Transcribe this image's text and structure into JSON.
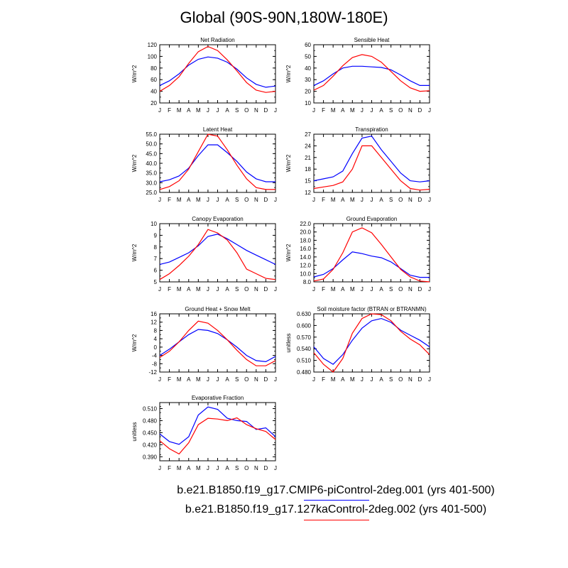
{
  "page": {
    "title": "Global (90S-90N,180W-180E)"
  },
  "colors": {
    "series1": "#0000ff",
    "series2": "#ff0000",
    "axis": "#000000"
  },
  "legend": [
    {
      "label": "b.e21.B1850.f19_g17.CMIP6-piControl-2deg.001 (yrs 401-500)",
      "color": "#0000ff"
    },
    {
      "label": "b.e21.B1850.f19_g17.127kaControl-2deg.002 (yrs 401-500)",
      "color": "#ff0000"
    }
  ],
  "chart_data": [
    {
      "type": "line",
      "title": "Net Radiation",
      "ylabel": "W/m^2",
      "x": [
        "J",
        "F",
        "M",
        "A",
        "M",
        "J",
        "J",
        "A",
        "S",
        "O",
        "N",
        "D",
        "J"
      ],
      "ylim": [
        20,
        120
      ],
      "yticks": [
        20,
        40,
        60,
        80,
        100,
        120
      ],
      "ytick_labels": [
        "20",
        "40",
        "60",
        "80",
        "100",
        "120"
      ],
      "series": [
        {
          "color": "#0000ff",
          "values": [
            50,
            58,
            70,
            85,
            95,
            99,
            97,
            90,
            78,
            63,
            52,
            47,
            49
          ]
        },
        {
          "color": "#ff0000",
          "values": [
            40,
            50,
            65,
            88,
            108,
            117,
            110,
            94,
            75,
            55,
            42,
            38,
            40
          ]
        }
      ]
    },
    {
      "type": "line",
      "title": "Sensible Heat",
      "ylabel": "W/m^2",
      "x": [
        "J",
        "F",
        "M",
        "A",
        "M",
        "J",
        "J",
        "A",
        "S",
        "O",
        "N",
        "D",
        "J"
      ],
      "ylim": [
        10,
        60
      ],
      "yticks": [
        10,
        20,
        30,
        40,
        50,
        60
      ],
      "ytick_labels": [
        "10",
        "20",
        "30",
        "40",
        "50",
        "60"
      ],
      "series": [
        {
          "color": "#0000ff",
          "values": [
            25,
            29,
            35,
            40,
            41.5,
            41.5,
            41,
            40.5,
            38.5,
            34,
            29,
            25,
            25
          ]
        },
        {
          "color": "#ff0000",
          "values": [
            21,
            25,
            33,
            42,
            49,
            51.5,
            50,
            45,
            37,
            29,
            23,
            20,
            20.5
          ]
        }
      ]
    },
    {
      "type": "line",
      "title": "Latent Heat",
      "ylabel": "W/m^2",
      "x": [
        "J",
        "F",
        "M",
        "A",
        "M",
        "J",
        "J",
        "A",
        "S",
        "O",
        "N",
        "D",
        "J"
      ],
      "ylim": [
        25,
        55
      ],
      "yticks": [
        25,
        30,
        35,
        40,
        45,
        50,
        55
      ],
      "ytick_labels": [
        "25.0",
        "30.0",
        "35.0",
        "40.0",
        "45.0",
        "50.0",
        "55.0"
      ],
      "series": [
        {
          "color": "#0000ff",
          "values": [
            30.5,
            31.5,
            33.5,
            37.5,
            44,
            49.5,
            49.5,
            45.5,
            41,
            35.5,
            32,
            30.5,
            30.5
          ]
        },
        {
          "color": "#ff0000",
          "values": [
            26.5,
            28,
            31,
            37,
            46,
            55,
            54,
            47,
            39,
            32,
            27.5,
            26.5,
            26.5
          ]
        }
      ]
    },
    {
      "type": "line",
      "title": "Transpiration",
      "ylabel": "W/m^2",
      "x": [
        "J",
        "F",
        "M",
        "A",
        "M",
        "J",
        "J",
        "A",
        "S",
        "O",
        "N",
        "D",
        "J"
      ],
      "ylim": [
        12,
        27
      ],
      "yticks": [
        12,
        15,
        18,
        21,
        24,
        27
      ],
      "ytick_labels": [
        "12",
        "15",
        "18",
        "21",
        "24",
        "27"
      ],
      "series": [
        {
          "color": "#0000ff",
          "values": [
            15,
            15.5,
            16,
            17.5,
            22,
            26,
            26.5,
            23,
            20,
            17,
            15,
            14.7,
            15
          ]
        },
        {
          "color": "#ff0000",
          "values": [
            13,
            13.4,
            13.8,
            14.7,
            18,
            24,
            24,
            21,
            18,
            15,
            13,
            12.6,
            12.8
          ]
        }
      ]
    },
    {
      "type": "line",
      "title": "Canopy Evaporation",
      "ylabel": "W/m^2",
      "x": [
        "J",
        "F",
        "M",
        "A",
        "M",
        "J",
        "J",
        "A",
        "S",
        "O",
        "N",
        "D",
        "J"
      ],
      "ylim": [
        5,
        10
      ],
      "yticks": [
        5,
        6,
        7,
        8,
        9,
        10
      ],
      "ytick_labels": [
        "5",
        "6",
        "7",
        "8",
        "9",
        "10"
      ],
      "series": [
        {
          "color": "#0000ff",
          "values": [
            6.5,
            6.7,
            7.1,
            7.5,
            8.1,
            8.9,
            9.1,
            8.7,
            8.2,
            7.7,
            7.3,
            6.9,
            6.5
          ]
        },
        {
          "color": "#ff0000",
          "values": [
            5.2,
            5.7,
            6.4,
            7.2,
            8.2,
            9.5,
            9.2,
            8.6,
            7.5,
            6.1,
            5.7,
            5.3,
            5.2
          ]
        }
      ]
    },
    {
      "type": "line",
      "title": "Ground Evaporation",
      "ylabel": "W/m^2",
      "x": [
        "J",
        "F",
        "M",
        "A",
        "M",
        "J",
        "J",
        "A",
        "S",
        "O",
        "N",
        "D",
        "J"
      ],
      "ylim": [
        8,
        22
      ],
      "yticks": [
        8,
        10,
        12,
        14,
        16,
        18,
        20,
        22
      ],
      "ytick_labels": [
        "8.0",
        "10.0",
        "12.0",
        "14.0",
        "16.0",
        "18.0",
        "20.0",
        "22.0"
      ],
      "series": [
        {
          "color": "#0000ff",
          "values": [
            9.2,
            9.8,
            11.2,
            13.3,
            15.2,
            14.8,
            14.2,
            13.8,
            12.8,
            11.2,
            9.6,
            9.1,
            9.1
          ]
        },
        {
          "color": "#ff0000",
          "values": [
            8.2,
            8.7,
            11,
            15,
            20,
            21,
            19.8,
            17,
            14,
            11,
            9.2,
            8.2,
            8
          ]
        }
      ]
    },
    {
      "type": "line",
      "title": "Ground Heat + Snow Melt",
      "ylabel": "W/m^2",
      "x": [
        "J",
        "F",
        "M",
        "A",
        "M",
        "J",
        "J",
        "A",
        "S",
        "O",
        "N",
        "D",
        "J"
      ],
      "ylim": [
        -12,
        16
      ],
      "yticks": [
        -12,
        -8,
        -4,
        0,
        4,
        8,
        12,
        16
      ],
      "ytick_labels": [
        "-12",
        "-8",
        "-4",
        "0",
        "4",
        "8",
        "12",
        "16"
      ],
      "series": [
        {
          "color": "#0000ff",
          "values": [
            -4,
            -1,
            2.5,
            6,
            8.5,
            8,
            6.5,
            3.5,
            0,
            -4,
            -6.5,
            -7,
            -4.5
          ]
        },
        {
          "color": "#ff0000",
          "values": [
            -5,
            -2,
            2.5,
            8,
            12.5,
            11.5,
            8,
            3.5,
            -1.5,
            -6,
            -9,
            -9,
            -6.5
          ]
        }
      ]
    },
    {
      "type": "line",
      "title": "Soil moisture factor (BTRAN or BTRANMN)",
      "ylabel": "unitless",
      "x": [
        "J",
        "F",
        "M",
        "A",
        "M",
        "J",
        "J",
        "A",
        "S",
        "O",
        "N",
        "D",
        "J"
      ],
      "ylim": [
        0.48,
        0.63
      ],
      "yticks": [
        0.48,
        0.51,
        0.54,
        0.57,
        0.6,
        0.63
      ],
      "ytick_labels": [
        "0.480",
        "0.510",
        "0.540",
        "0.570",
        "0.600",
        "0.630"
      ],
      "series": [
        {
          "color": "#0000ff",
          "values": [
            0.545,
            0.515,
            0.5,
            0.525,
            0.562,
            0.593,
            0.612,
            0.618,
            0.608,
            0.588,
            0.575,
            0.562,
            0.545
          ]
        },
        {
          "color": "#ff0000",
          "values": [
            0.53,
            0.5,
            0.48,
            0.515,
            0.58,
            0.618,
            0.63,
            0.628,
            0.612,
            0.585,
            0.565,
            0.55,
            0.525
          ]
        }
      ]
    },
    {
      "type": "line",
      "title": "Evaporative Fraction",
      "ylabel": "unitless",
      "x": [
        "J",
        "F",
        "M",
        "A",
        "M",
        "J",
        "J",
        "A",
        "S",
        "O",
        "N",
        "D",
        "J"
      ],
      "ylim": [
        0.38,
        0.525
      ],
      "yticks": [
        0.39,
        0.42,
        0.45,
        0.48,
        0.51
      ],
      "ytick_labels": [
        "0.390",
        "0.420",
        "0.450",
        "0.480",
        "0.510"
      ],
      "series": [
        {
          "color": "#0000ff",
          "values": [
            0.447,
            0.428,
            0.421,
            0.44,
            0.494,
            0.514,
            0.508,
            0.486,
            0.48,
            0.478,
            0.458,
            0.462,
            0.44
          ]
        },
        {
          "color": "#ff0000",
          "values": [
            0.43,
            0.41,
            0.397,
            0.425,
            0.47,
            0.486,
            0.484,
            0.48,
            0.487,
            0.47,
            0.46,
            0.453,
            0.433
          ]
        }
      ]
    }
  ]
}
